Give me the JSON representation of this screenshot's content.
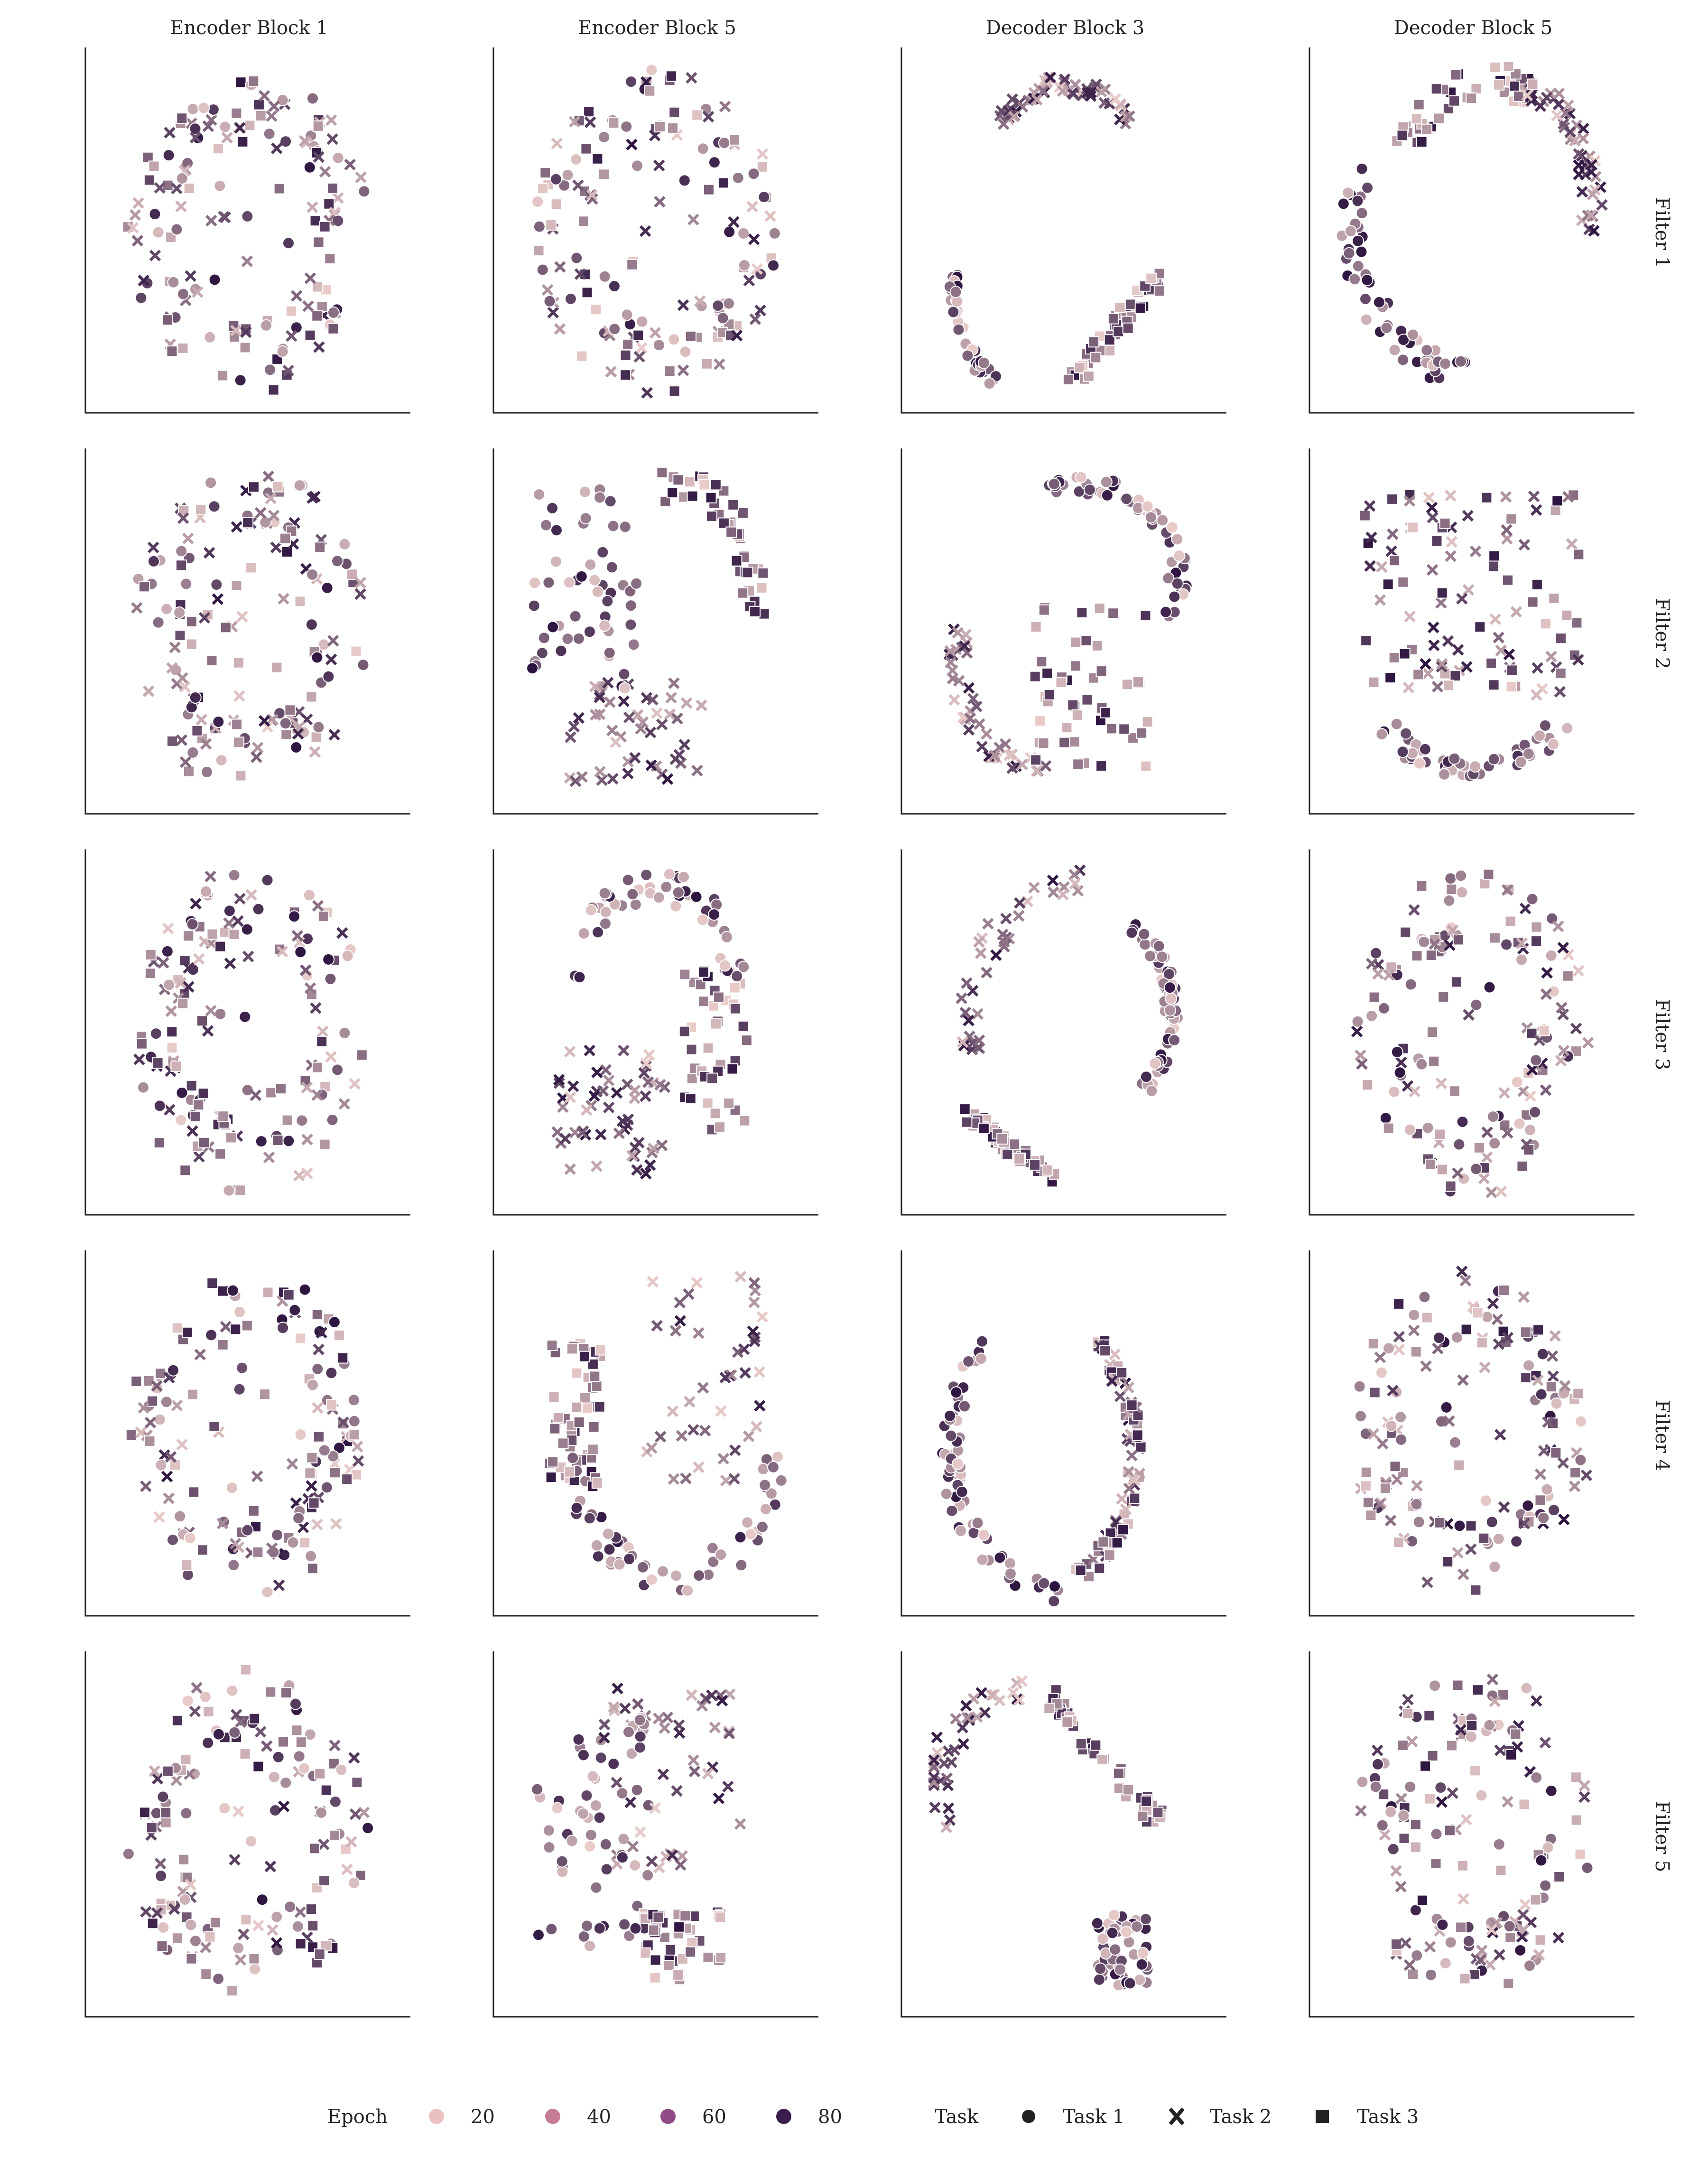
{
  "chart_data": {
    "type": "scatter",
    "grid": false,
    "column_titles": [
      "Encoder Block 1",
      "Encoder Block 5",
      "Decoder Block 3",
      "Decoder Block 5"
    ],
    "row_titles": [
      "Filter 1",
      "Filter 2",
      "Filter 3",
      "Filter 4",
      "Filter 5"
    ],
    "legend": {
      "placement": "bottom",
      "epoch_title": "Epoch",
      "epoch_entries": [
        {
          "label": "20",
          "value": 20,
          "color": "#ebc1c0"
        },
        {
          "label": "40",
          "value": 40,
          "color": "#c67b96"
        },
        {
          "label": "60",
          "value": 60,
          "color": "#8f4b84"
        },
        {
          "label": "80",
          "value": 80,
          "color": "#3a1d4c"
        }
      ],
      "task_title": "Task",
      "task_entries": [
        {
          "label": "Task 1",
          "marker": "circle"
        },
        {
          "label": "Task 2",
          "marker": "x"
        },
        {
          "label": "Task 3",
          "marker": "square"
        }
      ]
    },
    "epoch_color_scale": {
      "min": 0,
      "max": 100,
      "low_color": "#f3d6d1",
      "high_color": "#2d1440"
    },
    "panel_layouts": [
      [
        "ring",
        "ring",
        "dec3_f1",
        "dec5_f1"
      ],
      [
        "ring",
        "enc5_f2",
        "dec3_f2",
        "dec5_f2"
      ],
      [
        "ring",
        "enc5_f3",
        "dec3_f3",
        "ring"
      ],
      [
        "ring",
        "enc5_f4",
        "dec3_f4",
        "ring"
      ],
      [
        "ring",
        "enc5_f5",
        "dec3_f5",
        "ring"
      ]
    ],
    "points_per_panel": 150
  }
}
